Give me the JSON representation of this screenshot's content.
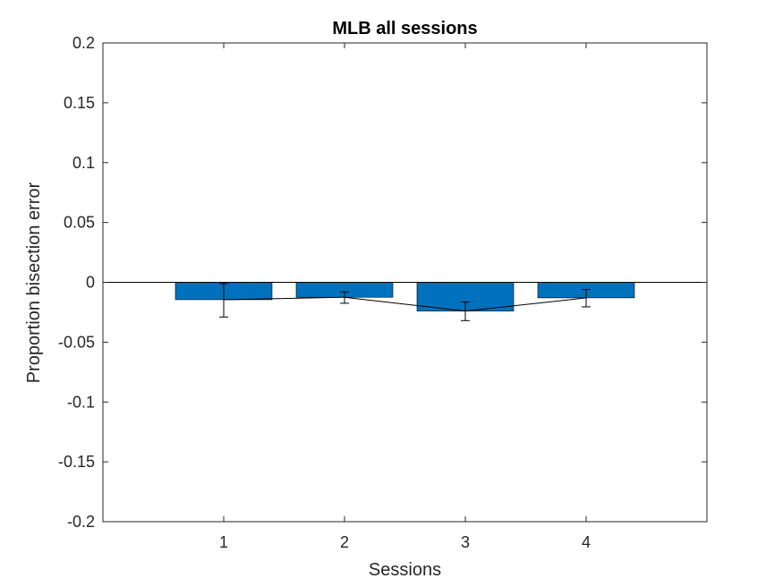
{
  "chart_data": {
    "type": "bar",
    "title": "MLB all sessions",
    "xlabel": "Sessions",
    "ylabel": "Proportion bisection error",
    "categories": [
      "1",
      "2",
      "3",
      "4"
    ],
    "values": [
      -0.0145,
      -0.0125,
      -0.024,
      -0.013
    ],
    "error_low": [
      -0.029,
      -0.0175,
      -0.032,
      -0.0205
    ],
    "error_high": [
      -0.001,
      -0.008,
      -0.0165,
      -0.006
    ],
    "ylim": [
      -0.2,
      0.2
    ],
    "yticks": [
      0.2,
      0.15,
      0.1,
      0.05,
      0,
      -0.05,
      -0.1,
      -0.15,
      -0.2
    ],
    "ytick_labels": [
      "0.2",
      "0.15",
      "0.1",
      "0.05",
      "0",
      "-0.05",
      "-0.1",
      "-0.15",
      "-0.2"
    ],
    "xlim": [
      0,
      5
    ],
    "grid": false,
    "bar_color": "#0072BD",
    "line_through_means": true
  }
}
